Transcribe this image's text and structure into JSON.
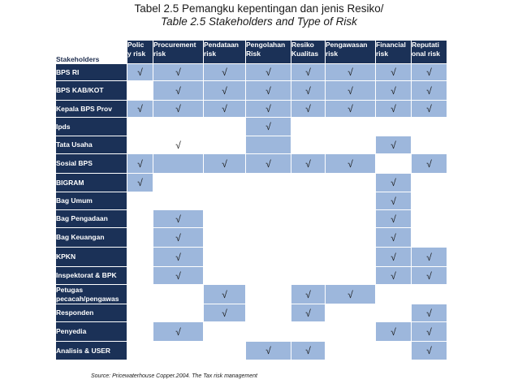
{
  "title_line1": "Tabel 2.5 Pemangku kepentingan dan jenis Resiko/",
  "title_line2": "Table 2.5 Stakeholders and Type of Risk",
  "stakeholders_header": "Stakeholders",
  "columns": [
    [
      "Polic",
      "y risk"
    ],
    [
      "Procurement",
      "risk"
    ],
    [
      "Pendataan",
      "risk"
    ],
    [
      "Pengolahan",
      "Risk"
    ],
    [
      "Resiko",
      "Kualitas"
    ],
    [
      "Pengawasan",
      "risk"
    ],
    [
      "Financial",
      "risk"
    ],
    [
      "Reputati",
      "onal risk"
    ]
  ],
  "check_symbol": "√",
  "rows": [
    {
      "label": [
        "BPS RI"
      ],
      "shade": [
        1,
        1,
        1,
        1,
        1,
        1,
        1,
        1
      ],
      "check": [
        1,
        1,
        1,
        1,
        1,
        1,
        1,
        1
      ]
    },
    {
      "label": [
        "BPS KAB/KOT"
      ],
      "shade": [
        0,
        1,
        1,
        1,
        1,
        1,
        1,
        1
      ],
      "check": [
        0,
        1,
        1,
        1,
        1,
        1,
        1,
        1
      ]
    },
    {
      "label": [
        "Kepala BPS Prov"
      ],
      "shade": [
        1,
        1,
        1,
        1,
        1,
        1,
        1,
        1
      ],
      "check": [
        1,
        1,
        1,
        1,
        1,
        1,
        1,
        1
      ]
    },
    {
      "label": [
        "Ipds"
      ],
      "shade": [
        0,
        0,
        0,
        1,
        0,
        0,
        0,
        0
      ],
      "check": [
        0,
        0,
        0,
        1,
        0,
        0,
        0,
        0
      ]
    },
    {
      "label": [
        "Tata Usaha"
      ],
      "shade": [
        0,
        0,
        0,
        1,
        0,
        0,
        1,
        0
      ],
      "check": [
        0,
        1,
        0,
        0,
        0,
        0,
        1,
        0
      ]
    },
    {
      "label": [
        "Sosial BPS"
      ],
      "shade": [
        1,
        1,
        1,
        1,
        1,
        1,
        0,
        1
      ],
      "check": [
        1,
        0,
        1,
        1,
        1,
        1,
        0,
        1
      ]
    },
    {
      "label": [
        "BIGRAM"
      ],
      "shade": [
        1,
        0,
        0,
        0,
        0,
        0,
        1,
        0
      ],
      "check": [
        1,
        0,
        0,
        0,
        0,
        0,
        1,
        0
      ]
    },
    {
      "label": [
        "Bag Umum"
      ],
      "shade": [
        0,
        0,
        0,
        0,
        0,
        0,
        1,
        0
      ],
      "check": [
        0,
        0,
        0,
        0,
        0,
        0,
        1,
        0
      ]
    },
    {
      "label": [
        "Bag Pengadaan"
      ],
      "shade": [
        0,
        1,
        0,
        0,
        0,
        0,
        1,
        0
      ],
      "check": [
        0,
        1,
        0,
        0,
        0,
        0,
        1,
        0
      ]
    },
    {
      "label": [
        "Bag Keuangan"
      ],
      "shade": [
        0,
        1,
        0,
        0,
        0,
        0,
        1,
        0
      ],
      "check": [
        0,
        1,
        0,
        0,
        0,
        0,
        1,
        0
      ]
    },
    {
      "label": [
        "KPKN"
      ],
      "shade": [
        0,
        1,
        0,
        0,
        0,
        0,
        1,
        1
      ],
      "check": [
        0,
        1,
        0,
        0,
        0,
        0,
        1,
        1
      ]
    },
    {
      "label": [
        "Inspektorat &amp; BPK"
      ],
      "shade": [
        0,
        1,
        0,
        0,
        0,
        0,
        1,
        1
      ],
      "check": [
        0,
        1,
        0,
        0,
        0,
        0,
        1,
        1
      ]
    },
    {
      "label": [
        "Petugas",
        "pecacah/pengawas"
      ],
      "shade": [
        0,
        0,
        1,
        0,
        1,
        1,
        0,
        0
      ],
      "check": [
        0,
        0,
        1,
        0,
        1,
        1,
        0,
        0
      ]
    },
    {
      "label": [
        "Responden"
      ],
      "shade": [
        0,
        0,
        1,
        0,
        1,
        0,
        0,
        1
      ],
      "check": [
        0,
        0,
        1,
        0,
        1,
        0,
        0,
        1
      ]
    },
    {
      "label": [
        "Penyedia"
      ],
      "shade": [
        0,
        1,
        0,
        0,
        0,
        0,
        1,
        1
      ],
      "check": [
        0,
        1,
        0,
        0,
        0,
        0,
        1,
        1
      ]
    },
    {
      "label": [
        "Analisis &amp; USER"
      ],
      "shade": [
        0,
        0,
        0,
        1,
        1,
        0,
        0,
        1
      ],
      "check": [
        0,
        0,
        0,
        1,
        1,
        0,
        0,
        1
      ]
    }
  ],
  "source": "Source: Pricewaterhouse Copper.2004. The Tax risk management"
}
